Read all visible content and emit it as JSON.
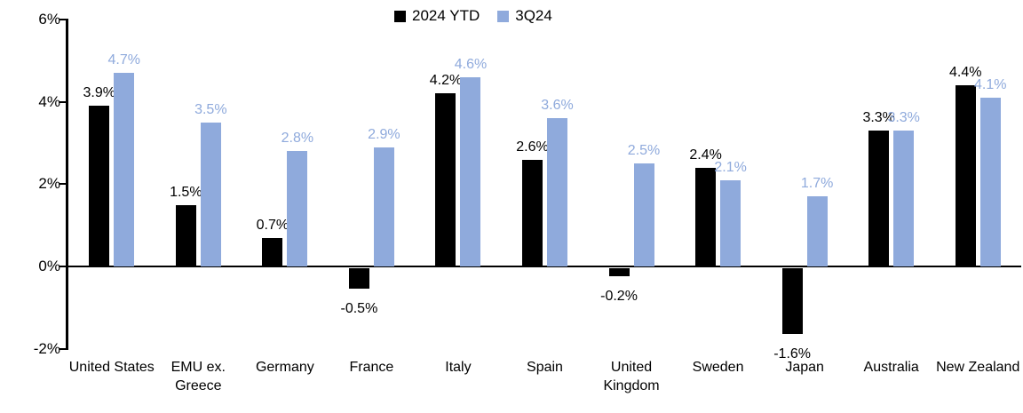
{
  "chart_data": {
    "type": "bar",
    "title": "",
    "xlabel": "",
    "ylabel": "",
    "legend_position": "top",
    "grid": false,
    "categories": [
      "United States",
      "EMU ex. Greece",
      "Germany",
      "France",
      "Italy",
      "Spain",
      "United Kingdom",
      "Sweden",
      "Japan",
      "Australia",
      "New Zealand"
    ],
    "series": [
      {
        "name": "2024 YTD",
        "color": "#000000",
        "values": [
          3.9,
          1.5,
          0.7,
          -0.5,
          4.2,
          2.6,
          -0.2,
          2.4,
          -1.6,
          3.3,
          4.4
        ],
        "labels": [
          "3.9%",
          "1.5%",
          "0.7%",
          "-0.5%",
          "4.2%",
          "2.6%",
          "-0.2%",
          "2.4%",
          "-1.6%",
          "3.3%",
          "4.4%"
        ]
      },
      {
        "name": "3Q24",
        "color": "#8FAADC",
        "values": [
          4.7,
          3.5,
          2.8,
          2.9,
          4.6,
          3.6,
          2.5,
          2.1,
          1.7,
          3.3,
          4.1
        ],
        "labels": [
          "4.7%",
          "3.5%",
          "2.8%",
          "2.9%",
          "4.6%",
          "3.6%",
          "2.5%",
          "2.1%",
          "1.7%",
          "3.3%",
          "4.1%"
        ]
      }
    ],
    "y_axis": {
      "ylim": [
        -2,
        6
      ],
      "tick_step": 2,
      "ticks": [
        {
          "label": "6%",
          "value": 6
        },
        {
          "label": "4%",
          "value": 4
        },
        {
          "label": "2%",
          "value": 2
        },
        {
          "label": "0%",
          "value": 0
        },
        {
          "label": "-2%",
          "value": -2
        }
      ]
    }
  }
}
